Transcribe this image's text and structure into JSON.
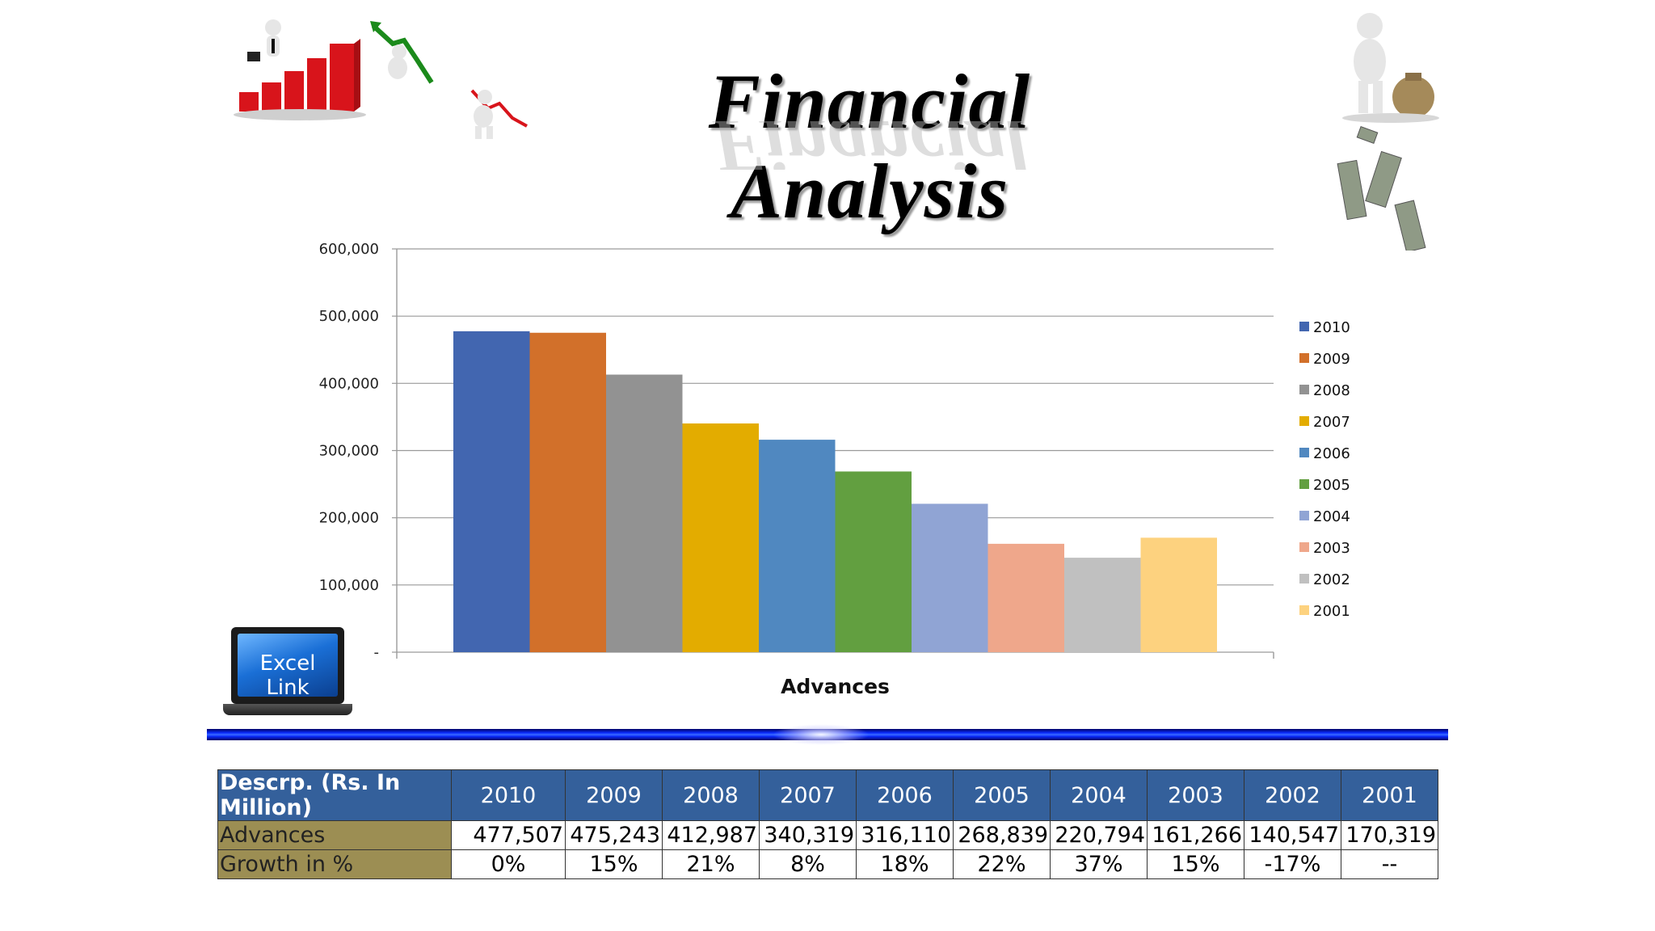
{
  "slide": {
    "title": "Financial Analysis",
    "excel_link_label": "Excel Link"
  },
  "chart_data": {
    "type": "bar",
    "xlabel": "Advances",
    "ylabel": "",
    "ylim": [
      0,
      600000
    ],
    "yticks": [
      0,
      100000,
      200000,
      300000,
      400000,
      500000,
      600000
    ],
    "ytick_labels": [
      "-",
      "100,000",
      "200,000",
      "300,000",
      "400,000",
      "500,000",
      "600,000"
    ],
    "grid": true,
    "legend_position": "right",
    "series": [
      {
        "name": "2010",
        "value": 477507,
        "color": "#4266b0"
      },
      {
        "name": "2009",
        "value": 475243,
        "color": "#d2702a"
      },
      {
        "name": "2008",
        "value": 412987,
        "color": "#929292"
      },
      {
        "name": "2007",
        "value": 340319,
        "color": "#e3ac00"
      },
      {
        "name": "2006",
        "value": 316110,
        "color": "#5088c0"
      },
      {
        "name": "2005",
        "value": 268839,
        "color": "#629f40"
      },
      {
        "name": "2004",
        "value": 220794,
        "color": "#90a4d4"
      },
      {
        "name": "2003",
        "value": 161266,
        "color": "#efa78b"
      },
      {
        "name": "2002",
        "value": 140547,
        "color": "#c0c0c0"
      },
      {
        "name": "2001",
        "value": 170319,
        "color": "#fdd27f"
      }
    ]
  },
  "table": {
    "header_label": "Descrp. (Rs. In Million)",
    "years": [
      "2010",
      "2009",
      "2008",
      "2007",
      "2006",
      "2005",
      "2004",
      "2003",
      "2002",
      "2001"
    ],
    "rows": [
      {
        "label": "Advances",
        "values": [
          "477,507",
          "475,243",
          "412,987",
          "340,319",
          "316,110",
          "268,839",
          "220,794",
          "161,266",
          "140,547",
          "170,319"
        ]
      },
      {
        "label": "Growth in %",
        "values": [
          "0%",
          "15%",
          "21%",
          "8%",
          "18%",
          "22%",
          "37%",
          "15%",
          "-17%",
          "--"
        ]
      }
    ]
  },
  "colors": {
    "table_header": "#34609b",
    "table_row_label": "#9c8e53",
    "divider": "#0a2cff"
  }
}
